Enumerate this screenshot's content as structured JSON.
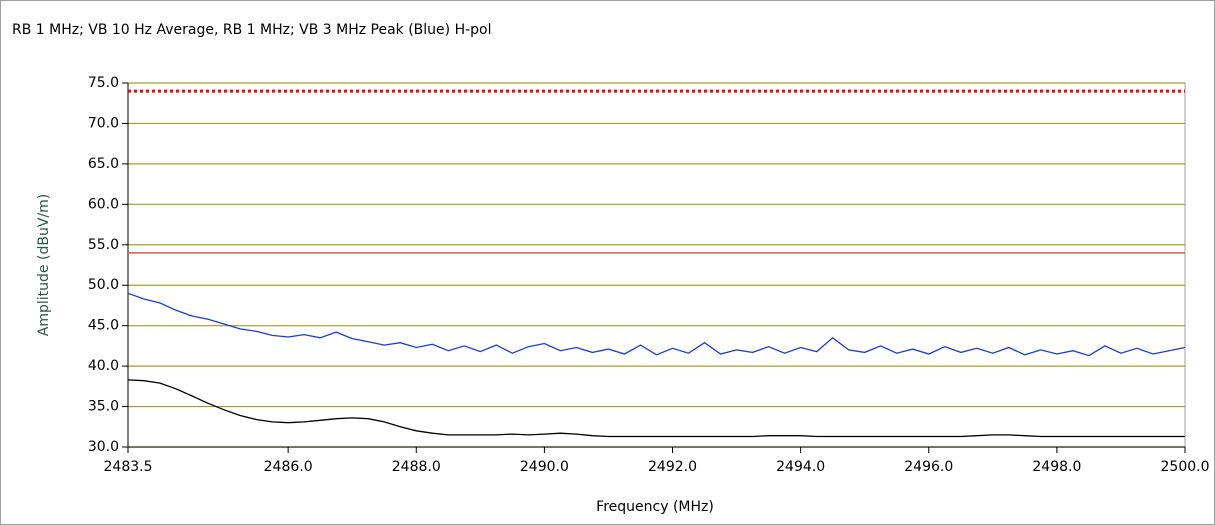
{
  "chart_data": {
    "type": "line",
    "title": "RB 1 MHz; VB 10 Hz Average, RB 1 MHz; VB 3 MHz Peak (Blue) H-pol",
    "xlabel": "Frequency (MHz)",
    "ylabel": "Amplitude (dBuV/m)",
    "xlim": [
      2483.5,
      2500.0
    ],
    "ylim": [
      30,
      75
    ],
    "xticks": [
      {
        "value": 2483.5,
        "label": "2483.5"
      },
      {
        "value": 2486,
        "label": "2486.0"
      },
      {
        "value": 2488,
        "label": "2488.0"
      },
      {
        "value": 2490,
        "label": "2490.0"
      },
      {
        "value": 2492,
        "label": "2492.0"
      },
      {
        "value": 2494,
        "label": "2494.0"
      },
      {
        "value": 2496,
        "label": "2496.0"
      },
      {
        "value": 2498,
        "label": "2498.0"
      },
      {
        "value": 2500,
        "label": "2500.0"
      }
    ],
    "yticks": [
      {
        "value": 30,
        "label": "30.0"
      },
      {
        "value": 35,
        "label": "35.0"
      },
      {
        "value": 40,
        "label": "40.0"
      },
      {
        "value": 45,
        "label": "45.0"
      },
      {
        "value": 50,
        "label": "50.0"
      },
      {
        "value": 55,
        "label": "55.0"
      },
      {
        "value": 60,
        "label": "60.0"
      },
      {
        "value": 65,
        "label": "65.0"
      },
      {
        "value": 70,
        "label": "70.0"
      },
      {
        "value": 75,
        "label": "75.0"
      }
    ],
    "grid": true,
    "grid_color": "#a0a020",
    "limit_lines": [
      {
        "value": 74,
        "color": "#ff0000",
        "style": "dotted"
      },
      {
        "value": 54,
        "color": "#e05050",
        "style": "solid"
      }
    ],
    "x": [
      2483.5,
      2483.75,
      2484.0,
      2484.25,
      2484.5,
      2484.75,
      2485.0,
      2485.25,
      2485.5,
      2485.75,
      2486.0,
      2486.25,
      2486.5,
      2486.75,
      2487.0,
      2487.25,
      2487.5,
      2487.75,
      2488.0,
      2488.25,
      2488.5,
      2488.75,
      2489.0,
      2489.25,
      2489.5,
      2489.75,
      2490.0,
      2490.25,
      2490.5,
      2490.75,
      2491.0,
      2491.25,
      2491.5,
      2491.75,
      2492.0,
      2492.25,
      2492.5,
      2492.75,
      2493.0,
      2493.25,
      2493.5,
      2493.75,
      2494.0,
      2494.25,
      2494.5,
      2494.75,
      2495.0,
      2495.25,
      2495.5,
      2495.75,
      2496.0,
      2496.25,
      2496.5,
      2496.75,
      2497.0,
      2497.25,
      2497.5,
      2497.75,
      2498.0,
      2498.25,
      2498.5,
      2498.75,
      2499.0,
      2499.25,
      2499.5,
      2499.75,
      2500.0
    ],
    "series": [
      {
        "name": "Peak",
        "color": "#1a3cd8",
        "values": [
          49.0,
          48.3,
          47.8,
          46.9,
          46.2,
          45.8,
          45.2,
          44.6,
          44.3,
          43.8,
          43.6,
          43.9,
          43.5,
          44.2,
          43.4,
          43.0,
          42.6,
          42.9,
          42.3,
          42.7,
          41.9,
          42.5,
          41.8,
          42.6,
          41.6,
          42.4,
          42.8,
          41.9,
          42.3,
          41.7,
          42.1,
          41.5,
          42.6,
          41.4,
          42.2,
          41.6,
          42.9,
          41.5,
          42.0,
          41.7,
          42.4,
          41.6,
          42.3,
          41.8,
          43.5,
          42.0,
          41.7,
          42.5,
          41.6,
          42.1,
          41.5,
          42.4,
          41.7,
          42.2,
          41.6,
          42.3,
          41.4,
          42.0,
          41.5,
          41.9,
          41.3,
          42.5,
          41.6,
          42.2,
          41.5,
          41.9,
          42.3
        ]
      },
      {
        "name": "Average",
        "color": "#000000",
        "values": [
          38.3,
          38.2,
          37.9,
          37.2,
          36.3,
          35.4,
          34.6,
          33.9,
          33.4,
          33.1,
          33.0,
          33.1,
          33.3,
          33.5,
          33.6,
          33.5,
          33.1,
          32.5,
          32.0,
          31.7,
          31.5,
          31.5,
          31.5,
          31.5,
          31.6,
          31.5,
          31.6,
          31.7,
          31.6,
          31.4,
          31.3,
          31.3,
          31.3,
          31.3,
          31.3,
          31.3,
          31.3,
          31.3,
          31.3,
          31.3,
          31.4,
          31.4,
          31.4,
          31.3,
          31.3,
          31.3,
          31.3,
          31.3,
          31.3,
          31.3,
          31.3,
          31.3,
          31.3,
          31.4,
          31.5,
          31.5,
          31.4,
          31.3,
          31.3,
          31.3,
          31.3,
          31.3,
          31.3,
          31.3,
          31.3,
          31.3,
          31.3
        ]
      }
    ]
  }
}
